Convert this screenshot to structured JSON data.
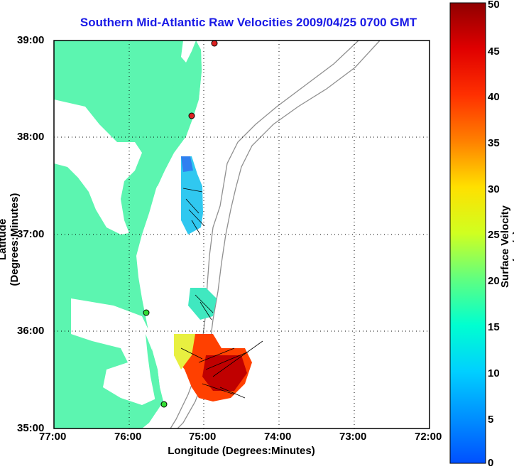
{
  "title": "Southern Mid-Atlantic Raw Velocities 2009/04/25 0700 GMT",
  "x_axis": {
    "label": "Longitude (Degrees:Minutes)",
    "ticks": [
      "77:00",
      "76:00",
      "75:00",
      "74:00",
      "73:00",
      "72:00"
    ]
  },
  "y_axis": {
    "label": "Latitude (Degrees:Minutes)",
    "ticks": [
      "39:00",
      "38:00",
      "37:00",
      "36:00",
      "35:00"
    ]
  },
  "colorbar": {
    "label": "Surface Velocity (cm/s)",
    "ticks": [
      "50",
      "45",
      "40",
      "35",
      "30",
      "25",
      "20",
      "15",
      "10",
      "5",
      "0"
    ],
    "range": [
      0,
      50
    ]
  },
  "colors": {
    "land": "#5cf5b0",
    "title": "#1a1ae6",
    "bathymetry": "#909090",
    "station_green": "#33dd33",
    "station_red": "#dd2222"
  },
  "map": {
    "lon_range": [
      -77,
      -72
    ],
    "lat_range": [
      35,
      39
    ],
    "grid": "dotted",
    "stations": [
      {
        "lon": -74.85,
        "lat": 38.97,
        "color": "red"
      },
      {
        "lon": -75.15,
        "lat": 38.22,
        "color": "red"
      },
      {
        "lon": -75.58,
        "lat": 36.19,
        "color": "green"
      },
      {
        "lon": -75.49,
        "lat": 35.25,
        "color": "green"
      }
    ]
  }
}
